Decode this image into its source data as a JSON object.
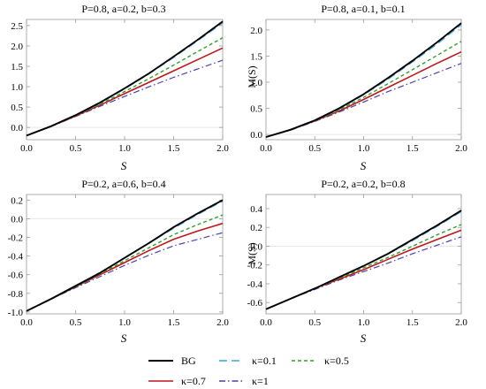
{
  "chart_data": [
    {
      "type": "line",
      "title": "P=0.8, a=0.2, b=0.3",
      "xlabel": "S",
      "ylabel": "",
      "xlim": [
        0,
        2
      ],
      "ylim": [
        -0.3,
        2.65
      ],
      "xticks": [
        0.0,
        0.5,
        1.0,
        1.5,
        2.0
      ],
      "xtick_labels": [
        "0.0",
        "0.5",
        "1.0",
        "1.5",
        "2.0"
      ],
      "yticks": [
        0.0,
        0.5,
        1.0,
        1.5,
        2.0,
        2.5
      ],
      "ytick_labels": [
        "0.0",
        "0.5",
        "1.0",
        "1.5",
        "2.0",
        "2.5"
      ],
      "series": [
        {
          "name": "BG",
          "x": [
            0,
            0.25,
            0.5,
            0.75,
            1.0,
            1.25,
            1.5,
            1.75,
            2.0
          ],
          "values": [
            -0.2,
            0.03,
            0.3,
            0.61,
            0.96,
            1.33,
            1.74,
            2.16,
            2.6
          ]
        },
        {
          "name": "κ=0.1",
          "x": [
            0,
            0.25,
            0.5,
            0.75,
            1.0,
            1.25,
            1.5,
            1.75,
            2.0
          ],
          "values": [
            -0.2,
            0.03,
            0.3,
            0.6,
            0.95,
            1.32,
            1.72,
            2.14,
            2.57
          ]
        },
        {
          "name": "κ=0.5",
          "x": [
            0,
            0.25,
            0.5,
            0.75,
            1.0,
            1.25,
            1.5,
            1.75,
            2.0
          ],
          "values": [
            -0.2,
            0.03,
            0.29,
            0.57,
            0.88,
            1.2,
            1.53,
            1.87,
            2.2
          ]
        },
        {
          "name": "κ=0.7",
          "x": [
            0,
            0.25,
            0.5,
            0.75,
            1.0,
            1.25,
            1.5,
            1.75,
            2.0
          ],
          "values": [
            -0.2,
            0.03,
            0.28,
            0.55,
            0.83,
            1.11,
            1.39,
            1.67,
            1.95
          ]
        },
        {
          "name": "κ=1",
          "x": [
            0,
            0.25,
            0.5,
            0.75,
            1.0,
            1.25,
            1.5,
            1.75,
            2.0
          ],
          "values": [
            -0.2,
            0.02,
            0.27,
            0.52,
            0.76,
            1.0,
            1.23,
            1.44,
            1.65
          ]
        }
      ]
    },
    {
      "type": "line",
      "title": "P=0.8, a=0.1, b=0.1",
      "xlabel": "S",
      "ylabel": "M(S)",
      "xlim": [
        0,
        2
      ],
      "ylim": [
        -0.1,
        2.2
      ],
      "xticks": [
        0.0,
        0.5,
        1.0,
        1.5,
        2.0
      ],
      "xtick_labels": [
        "0.0",
        "0.5",
        "1.0",
        "1.5",
        "2.0"
      ],
      "yticks": [
        0.0,
        0.5,
        1.0,
        1.5,
        2.0
      ],
      "ytick_labels": [
        "0.0",
        "0.5",
        "1.0",
        "1.5",
        "2.0"
      ],
      "series": [
        {
          "name": "BG",
          "x": [
            0,
            0.25,
            0.5,
            0.75,
            1.0,
            1.25,
            1.5,
            1.75,
            2.0
          ],
          "values": [
            -0.05,
            0.09,
            0.27,
            0.5,
            0.77,
            1.08,
            1.41,
            1.76,
            2.13
          ]
        },
        {
          "name": "κ=0.1",
          "x": [
            0,
            0.25,
            0.5,
            0.75,
            1.0,
            1.25,
            1.5,
            1.75,
            2.0
          ],
          "values": [
            -0.05,
            0.09,
            0.27,
            0.49,
            0.76,
            1.06,
            1.39,
            1.73,
            2.1
          ]
        },
        {
          "name": "κ=0.5",
          "x": [
            0,
            0.25,
            0.5,
            0.75,
            1.0,
            1.25,
            1.5,
            1.75,
            2.0
          ],
          "values": [
            -0.05,
            0.09,
            0.26,
            0.47,
            0.71,
            0.97,
            1.24,
            1.51,
            1.78
          ]
        },
        {
          "name": "κ=0.7",
          "x": [
            0,
            0.25,
            0.5,
            0.75,
            1.0,
            1.25,
            1.5,
            1.75,
            2.0
          ],
          "values": [
            -0.05,
            0.09,
            0.26,
            0.45,
            0.67,
            0.9,
            1.13,
            1.36,
            1.58
          ]
        },
        {
          "name": "κ=1",
          "x": [
            0,
            0.25,
            0.5,
            0.75,
            1.0,
            1.25,
            1.5,
            1.75,
            2.0
          ],
          "values": [
            -0.05,
            0.08,
            0.25,
            0.43,
            0.62,
            0.82,
            1.0,
            1.18,
            1.36
          ]
        }
      ]
    },
    {
      "type": "line",
      "title": "P=0.2, a=0.6, b=0.4",
      "xlabel": "S",
      "ylabel": "",
      "xlim": [
        0,
        2
      ],
      "ylim": [
        -1.02,
        0.26
      ],
      "xticks": [
        0.0,
        0.5,
        1.0,
        1.5,
        2.0
      ],
      "xtick_labels": [
        "0.0",
        "0.5",
        "1.0",
        "1.5",
        "2.0"
      ],
      "yticks": [
        -1.0,
        -0.8,
        -0.6,
        -0.4,
        -0.2,
        0.0,
        0.2
      ],
      "ytick_labels": [
        "-1.0",
        "-0.8",
        "-0.6",
        "-0.4",
        "-0.2",
        "0.0",
        "0.2"
      ],
      "series": [
        {
          "name": "BG",
          "x": [
            0,
            0.25,
            0.5,
            0.75,
            1.0,
            1.25,
            1.5,
            1.75,
            2.0
          ],
          "values": [
            -0.99,
            -0.86,
            -0.72,
            -0.58,
            -0.42,
            -0.26,
            -0.09,
            0.06,
            0.2
          ]
        },
        {
          "name": "κ=0.1",
          "x": [
            0,
            0.25,
            0.5,
            0.75,
            1.0,
            1.25,
            1.5,
            1.75,
            2.0
          ],
          "values": [
            -0.99,
            -0.86,
            -0.72,
            -0.58,
            -0.42,
            -0.26,
            -0.1,
            0.05,
            0.19
          ]
        },
        {
          "name": "κ=0.5",
          "x": [
            0,
            0.25,
            0.5,
            0.75,
            1.0,
            1.25,
            1.5,
            1.75,
            2.0
          ],
          "values": [
            -0.99,
            -0.86,
            -0.73,
            -0.59,
            -0.45,
            -0.31,
            -0.17,
            -0.06,
            0.04
          ]
        },
        {
          "name": "κ=0.7",
          "x": [
            0,
            0.25,
            0.5,
            0.75,
            1.0,
            1.25,
            1.5,
            1.75,
            2.0
          ],
          "values": [
            -0.99,
            -0.86,
            -0.73,
            -0.6,
            -0.47,
            -0.34,
            -0.22,
            -0.13,
            -0.05
          ]
        },
        {
          "name": "κ=1",
          "x": [
            0,
            0.25,
            0.5,
            0.75,
            1.0,
            1.25,
            1.5,
            1.75,
            2.0
          ],
          "values": [
            -0.99,
            -0.86,
            -0.74,
            -0.62,
            -0.5,
            -0.39,
            -0.29,
            -0.22,
            -0.15
          ]
        }
      ]
    },
    {
      "type": "line",
      "title": "P=0.2, a=0.2, b=0.8",
      "xlabel": "S",
      "ylabel": "M(S)",
      "xlim": [
        0,
        2
      ],
      "ylim": [
        -0.72,
        0.55
      ],
      "xticks": [
        0.0,
        0.5,
        1.0,
        1.5,
        2.0
      ],
      "xtick_labels": [
        "0.0",
        "0.5",
        "1.0",
        "1.5",
        "2.0"
      ],
      "yticks": [
        -0.6,
        -0.4,
        -0.2,
        0.0,
        0.2,
        0.4
      ],
      "ytick_labels": [
        "-0.6",
        "-0.4",
        "-0.2",
        "0.0",
        "0.2",
        "0.4"
      ],
      "series": [
        {
          "name": "BG",
          "x": [
            0,
            0.25,
            0.5,
            0.75,
            1.0,
            1.25,
            1.5,
            1.75,
            2.0
          ],
          "values": [
            -0.67,
            -0.56,
            -0.45,
            -0.33,
            -0.21,
            -0.08,
            0.07,
            0.22,
            0.38
          ]
        },
        {
          "name": "κ=0.1",
          "x": [
            0,
            0.25,
            0.5,
            0.75,
            1.0,
            1.25,
            1.5,
            1.75,
            2.0
          ],
          "values": [
            -0.67,
            -0.56,
            -0.45,
            -0.33,
            -0.21,
            -0.08,
            0.06,
            0.21,
            0.37
          ]
        },
        {
          "name": "κ=0.5",
          "x": [
            0,
            0.25,
            0.5,
            0.75,
            1.0,
            1.25,
            1.5,
            1.75,
            2.0
          ],
          "values": [
            -0.67,
            -0.56,
            -0.45,
            -0.34,
            -0.23,
            -0.12,
            0.0,
            0.12,
            0.23
          ]
        },
        {
          "name": "κ=0.7",
          "x": [
            0,
            0.25,
            0.5,
            0.75,
            1.0,
            1.25,
            1.5,
            1.75,
            2.0
          ],
          "values": [
            -0.67,
            -0.56,
            -0.45,
            -0.35,
            -0.25,
            -0.14,
            -0.03,
            0.07,
            0.17
          ]
        },
        {
          "name": "κ=1",
          "x": [
            0,
            0.25,
            0.5,
            0.75,
            1.0,
            1.25,
            1.5,
            1.75,
            2.0
          ],
          "values": [
            -0.67,
            -0.56,
            -0.46,
            -0.36,
            -0.27,
            -0.18,
            -0.08,
            0.01,
            0.1
          ]
        }
      ]
    }
  ],
  "legend": {
    "placement": "bottom",
    "items": [
      {
        "label": "BG",
        "color": "#000000",
        "dash": "solid"
      },
      {
        "label": "κ=0.1",
        "color": "#3fa9d6",
        "dash": "long-dash"
      },
      {
        "label": "κ=0.5",
        "color": "#2ca02c",
        "dash": "short-dash"
      },
      {
        "label": "κ=0.7",
        "color": "#c0171b",
        "dash": "solid"
      },
      {
        "label": "κ=1",
        "color": "#4b3fb0",
        "dash": "dash-dot"
      }
    ]
  }
}
